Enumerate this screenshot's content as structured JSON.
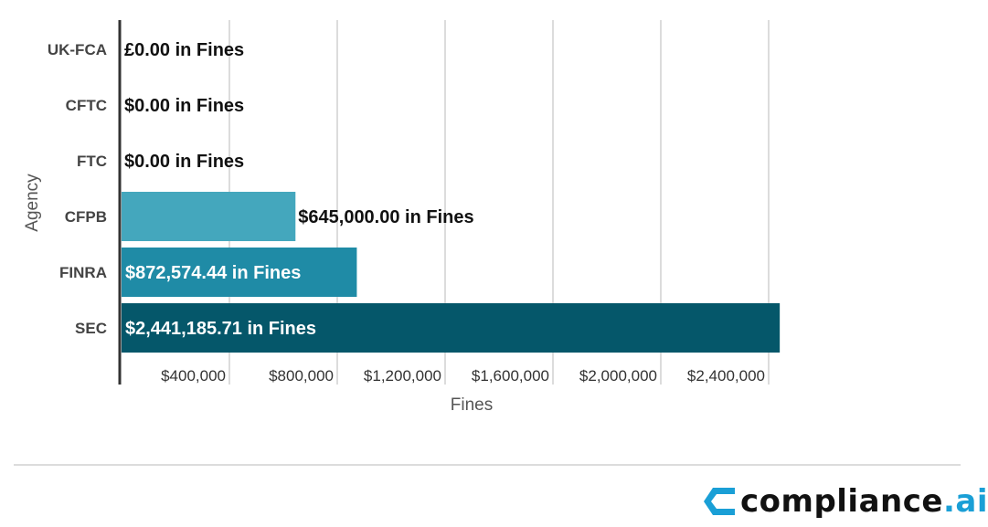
{
  "chart_data": {
    "type": "bar",
    "orientation": "horizontal",
    "categories": [
      "UK-FCA",
      "CFTC",
      "FTC",
      "CFPB",
      "FINRA",
      "SEC"
    ],
    "values": [
      0,
      0,
      0,
      645000,
      872574.44,
      2441185.71
    ],
    "data_labels": [
      "£0.00 in Fines",
      "$0.00 in Fines",
      "$0.00 in Fines",
      "$645,000.00 in Fines",
      "$872,574.44 in Fines",
      "$2,441,185.71 in Fines"
    ],
    "bar_colors": [
      "#44a7bd",
      "#44a7bd",
      "#44a7bd",
      "#44a7bd",
      "#1f8ba6",
      "#05576a"
    ],
    "xticks": [
      400000,
      800000,
      1200000,
      1600000,
      2000000,
      2400000
    ],
    "xtick_labels": [
      "$400,000",
      "$800,000",
      "$1,200,000",
      "$1,600,000",
      "$2,000,000",
      "$2,400,000"
    ],
    "xlim": [
      0,
      2400000
    ],
    "xlabel": "Fines",
    "ylabel": "Agency",
    "grid": "vertical"
  },
  "logo": {
    "text": "compliance",
    "suffix": ".ai",
    "icon": "chevron-left-icon",
    "accent_color": "#1a9fd6"
  }
}
